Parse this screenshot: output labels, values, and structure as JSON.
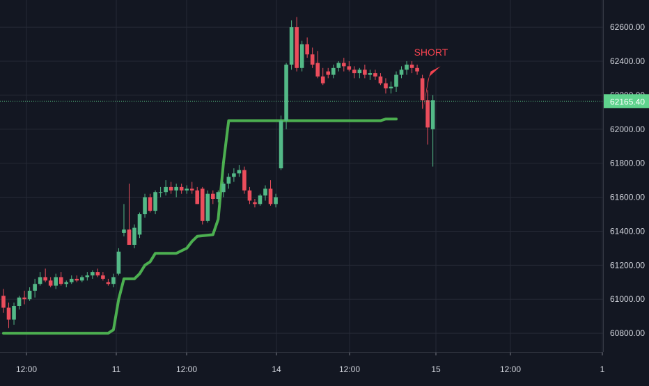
{
  "theme": {
    "background": "#131722",
    "grid": "#262a36",
    "up": "#53b987",
    "down": "#eb4d5c",
    "trail": "#4caf50",
    "axis_text": "#d1d4dc",
    "price_line": "#5fd38d",
    "signal": "#f2434f"
  },
  "chart_data": {
    "type": "candlestick",
    "title": "",
    "xlabel": "",
    "ylabel": "",
    "ylim": [
      60690,
      62760
    ],
    "grid": true,
    "y_ticks": [
      "60800.00",
      "61000.00",
      "61200.00",
      "61400.00",
      "61600.00",
      "61800.00",
      "62000.00",
      "62200.00",
      "62400.00",
      "62600.00"
    ],
    "x_ticks": [
      "12:00",
      "11",
      "12:00",
      "14",
      "12:00",
      "15",
      "12:00",
      "1"
    ],
    "last_price": {
      "value": 62165.4,
      "label": "62165.40"
    },
    "annotations": [
      {
        "text": "SHORT",
        "x": 112,
        "y": 62370
      }
    ],
    "candles": [
      [
        0,
        61020,
        61060,
        60920,
        60950
      ],
      [
        1,
        60950,
        60980,
        60830,
        60880
      ],
      [
        2,
        60880,
        60980,
        60850,
        60960
      ],
      [
        3,
        60960,
        61020,
        60940,
        61010
      ],
      [
        4,
        61010,
        61050,
        60970,
        61000
      ],
      [
        5,
        61000,
        61070,
        60990,
        61050
      ],
      [
        6,
        61050,
        61120,
        61010,
        61090
      ],
      [
        7,
        61090,
        61160,
        61080,
        61130
      ],
      [
        8,
        61130,
        61180,
        61100,
        61110
      ],
      [
        9,
        61110,
        61130,
        61070,
        61080
      ],
      [
        10,
        61080,
        61150,
        61060,
        61130
      ],
      [
        11,
        61130,
        61160,
        61080,
        61090
      ],
      [
        12,
        61090,
        61110,
        61070,
        61100
      ],
      [
        13,
        61100,
        61140,
        61090,
        61120
      ],
      [
        14,
        61120,
        61140,
        61100,
        61110
      ],
      [
        15,
        61110,
        61140,
        61100,
        61130
      ],
      [
        16,
        61130,
        61160,
        61110,
        61140
      ],
      [
        17,
        61140,
        61170,
        61120,
        61160
      ],
      [
        18,
        61160,
        61180,
        61130,
        61140
      ],
      [
        19,
        61140,
        61160,
        61110,
        61120
      ],
      [
        20,
        61100,
        61120,
        61080,
        61090
      ],
      [
        21,
        61090,
        61150,
        61070,
        61130
      ],
      [
        22,
        61150,
        61300,
        61140,
        61280
      ],
      [
        23,
        61390,
        61560,
        61370,
        61410
      ],
      [
        24,
        61410,
        61680,
        61320,
        61320
      ],
      [
        25,
        61320,
        61440,
        61300,
        61420
      ],
      [
        26,
        61380,
        61510,
        61360,
        61500
      ],
      [
        27,
        61500,
        61620,
        61480,
        61600
      ],
      [
        28,
        61600,
        61620,
        61510,
        61520
      ],
      [
        29,
        61520,
        61640,
        61500,
        61630
      ],
      [
        30,
        61630,
        61660,
        61600,
        61630
      ],
      [
        31,
        61630,
        61700,
        61610,
        61660
      ],
      [
        32,
        61660,
        61690,
        61620,
        61640
      ],
      [
        33,
        61640,
        61680,
        61600,
        61660
      ],
      [
        34,
        61660,
        61680,
        61620,
        61640
      ],
      [
        35,
        61640,
        61670,
        61620,
        61650
      ],
      [
        36,
        61650,
        61690,
        61620,
        61640
      ],
      [
        37,
        61640,
        61660,
        61560,
        61560
      ],
      [
        38,
        61650,
        61660,
        61440,
        61460
      ],
      [
        39,
        61460,
        61640,
        61450,
        61620
      ],
      [
        40,
        61620,
        61640,
        61560,
        61590
      ],
      [
        41,
        61590,
        61640,
        61570,
        61630
      ],
      [
        42,
        61630,
        61690,
        61600,
        61680
      ],
      [
        43,
        61680,
        61740,
        61650,
        61720
      ],
      [
        44,
        61720,
        61770,
        61690,
        61740
      ],
      [
        45,
        61740,
        61790,
        61720,
        61760
      ],
      [
        46,
        61760,
        61780,
        61620,
        61640
      ],
      [
        47,
        61640,
        61660,
        61560,
        61580
      ],
      [
        48,
        61570,
        61590,
        61540,
        61560
      ],
      [
        49,
        61560,
        61620,
        61550,
        61610
      ],
      [
        50,
        61610,
        61670,
        61580,
        61650
      ],
      [
        51,
        61650,
        61700,
        61550,
        61560
      ],
      [
        52,
        61560,
        61620,
        61540,
        61600
      ],
      [
        53,
        61770,
        62080,
        61760,
        62050
      ],
      [
        54,
        62050,
        62390,
        62000,
        62380
      ],
      [
        55,
        62380,
        62640,
        62350,
        62600
      ],
      [
        56,
        62600,
        62660,
        62340,
        62360
      ],
      [
        57,
        62360,
        62520,
        62340,
        62500
      ],
      [
        58,
        62500,
        62540,
        62420,
        62440
      ],
      [
        59,
        62440,
        62480,
        62360,
        62380
      ],
      [
        60,
        62390,
        62460,
        62300,
        62310
      ],
      [
        61,
        62310,
        62360,
        62260,
        62270
      ],
      [
        62,
        62340,
        62360,
        62300,
        62320
      ],
      [
        63,
        62320,
        62380,
        62300,
        62360
      ],
      [
        64,
        62360,
        62400,
        62340,
        62390
      ],
      [
        65,
        62390,
        62420,
        62340,
        62370
      ],
      [
        66,
        62370,
        62400,
        62340,
        62350
      ],
      [
        67,
        62350,
        62370,
        62300,
        62330
      ],
      [
        68,
        62330,
        62360,
        62300,
        62350
      ],
      [
        69,
        62350,
        62380,
        62300,
        62320
      ],
      [
        70,
        62320,
        62350,
        62290,
        62330
      ],
      [
        71,
        62330,
        62350,
        62290,
        62310
      ],
      [
        72,
        62310,
        62330,
        62260,
        62270
      ],
      [
        73,
        62270,
        62300,
        62210,
        62240
      ],
      [
        74,
        62240,
        62280,
        62210,
        62250
      ],
      [
        75,
        62250,
        62340,
        62220,
        62320
      ],
      [
        76,
        62320,
        62370,
        62300,
        62350
      ],
      [
        77,
        62350,
        62400,
        62320,
        62380
      ],
      [
        78,
        62380,
        62400,
        62330,
        62360
      ],
      [
        79,
        62360,
        62380,
        62320,
        62340
      ],
      [
        80,
        62300,
        62320,
        62120,
        62170
      ],
      [
        81,
        62170,
        62230,
        61910,
        62010
      ],
      [
        82,
        62000,
        62200,
        61780,
        62170
      ]
    ],
    "trail_stop": [
      [
        0,
        60800
      ],
      [
        20,
        60800
      ],
      [
        21,
        60820
      ],
      [
        22,
        61000
      ],
      [
        23,
        61120
      ],
      [
        25,
        61120
      ],
      [
        26,
        61150
      ],
      [
        27,
        61200
      ],
      [
        28,
        61220
      ],
      [
        29,
        61270
      ],
      [
        33,
        61270
      ],
      [
        35,
        61300
      ],
      [
        36,
        61340
      ],
      [
        37,
        61370
      ],
      [
        40,
        61380
      ],
      [
        41,
        61470
      ],
      [
        42,
        61800
      ],
      [
        43,
        62050
      ],
      [
        72,
        62050
      ],
      [
        73,
        62060
      ],
      [
        75,
        62060
      ]
    ]
  }
}
